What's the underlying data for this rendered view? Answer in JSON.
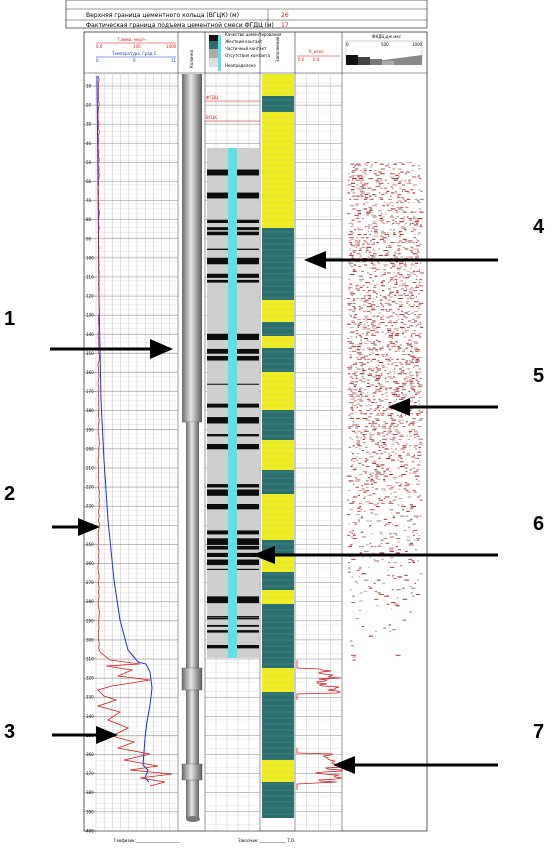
{
  "header": {
    "row1_label": "Верхняя граница цементного кольца (ВГЦК) (м)",
    "row1_value": "26",
    "row2_label": "Фактическая граница подъема цементной смеси ФГДЦ (м)",
    "row2_value": "17"
  },
  "track1": {
    "gamma_title": "Гамма, мкр/ч",
    "gamma_scale": [
      "0.0",
      "100",
      "1000"
    ],
    "temp_title": "Температура, Град.С",
    "temp_scale": [
      "0",
      "0",
      "11"
    ]
  },
  "track2": {
    "title": "Колонна"
  },
  "track3": {
    "title": "Качество цементирования",
    "legend": [
      "Жесткий контакт",
      "Частичный контакт",
      "Отсутствие контакта",
      "Неопределено"
    ],
    "marks": [
      "ФГДЦ",
      "ВГЦК"
    ]
  },
  "track4": {
    "title": "Заполнение"
  },
  "track5": {
    "title": "R_изол",
    "scale": [
      "0.0",
      "0.4"
    ]
  },
  "track6": {
    "title": "ФКДЦ,дж.мкс",
    "scale": [
      "0",
      "500",
      "1000"
    ]
  },
  "depth_labels": [
    "10",
    "20",
    "30",
    "40",
    "50",
    "60",
    "70",
    "80",
    "90",
    "100",
    "110",
    "120",
    "130",
    "140",
    "150",
    "160",
    "170",
    "180",
    "190",
    "200",
    "210",
    "220",
    "230",
    "240",
    "250",
    "260",
    "270",
    "280",
    "290",
    "300",
    "310",
    "320",
    "330",
    "340",
    "350",
    "360",
    "370",
    "380",
    "390",
    "400"
  ],
  "footer": {
    "left": "Геофизик:______________________",
    "right": "Заказчик: _____________ Т.О."
  },
  "callouts": [
    "1",
    "2",
    "3",
    "4",
    "5",
    "6",
    "7"
  ],
  "colors": {
    "yellow": "#f0ee22",
    "teal": "#2a6e6e",
    "cyan": "#5fe0e8",
    "red": "#d81818",
    "blue": "#1a30d8",
    "maroon": "#9c1f1f"
  }
}
